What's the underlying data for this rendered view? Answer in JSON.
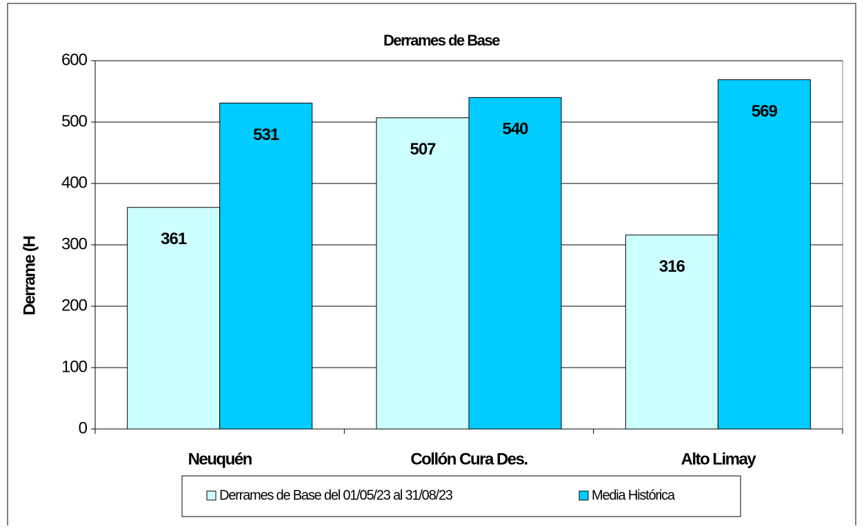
{
  "chart_data": {
    "type": "bar",
    "title": "Derrames de Base",
    "y_label": "Derrame (H",
    "categories": [
      "Neuquén",
      "Collón Cura Des.",
      "Alto Limay"
    ],
    "series": [
      {
        "name": "Derrames de Base del 01/05/23 al 31/08/23",
        "color": "#ccffff",
        "values": [
          361,
          507,
          316
        ]
      },
      {
        "name": "Media Histórica",
        "color": "#00ccff",
        "values": [
          531,
          540,
          569
        ]
      }
    ],
    "ylim": [
      0,
      600
    ],
    "yticks": [
      0,
      100,
      200,
      300,
      400,
      500,
      600
    ],
    "grid": true,
    "legend": "bottom"
  }
}
